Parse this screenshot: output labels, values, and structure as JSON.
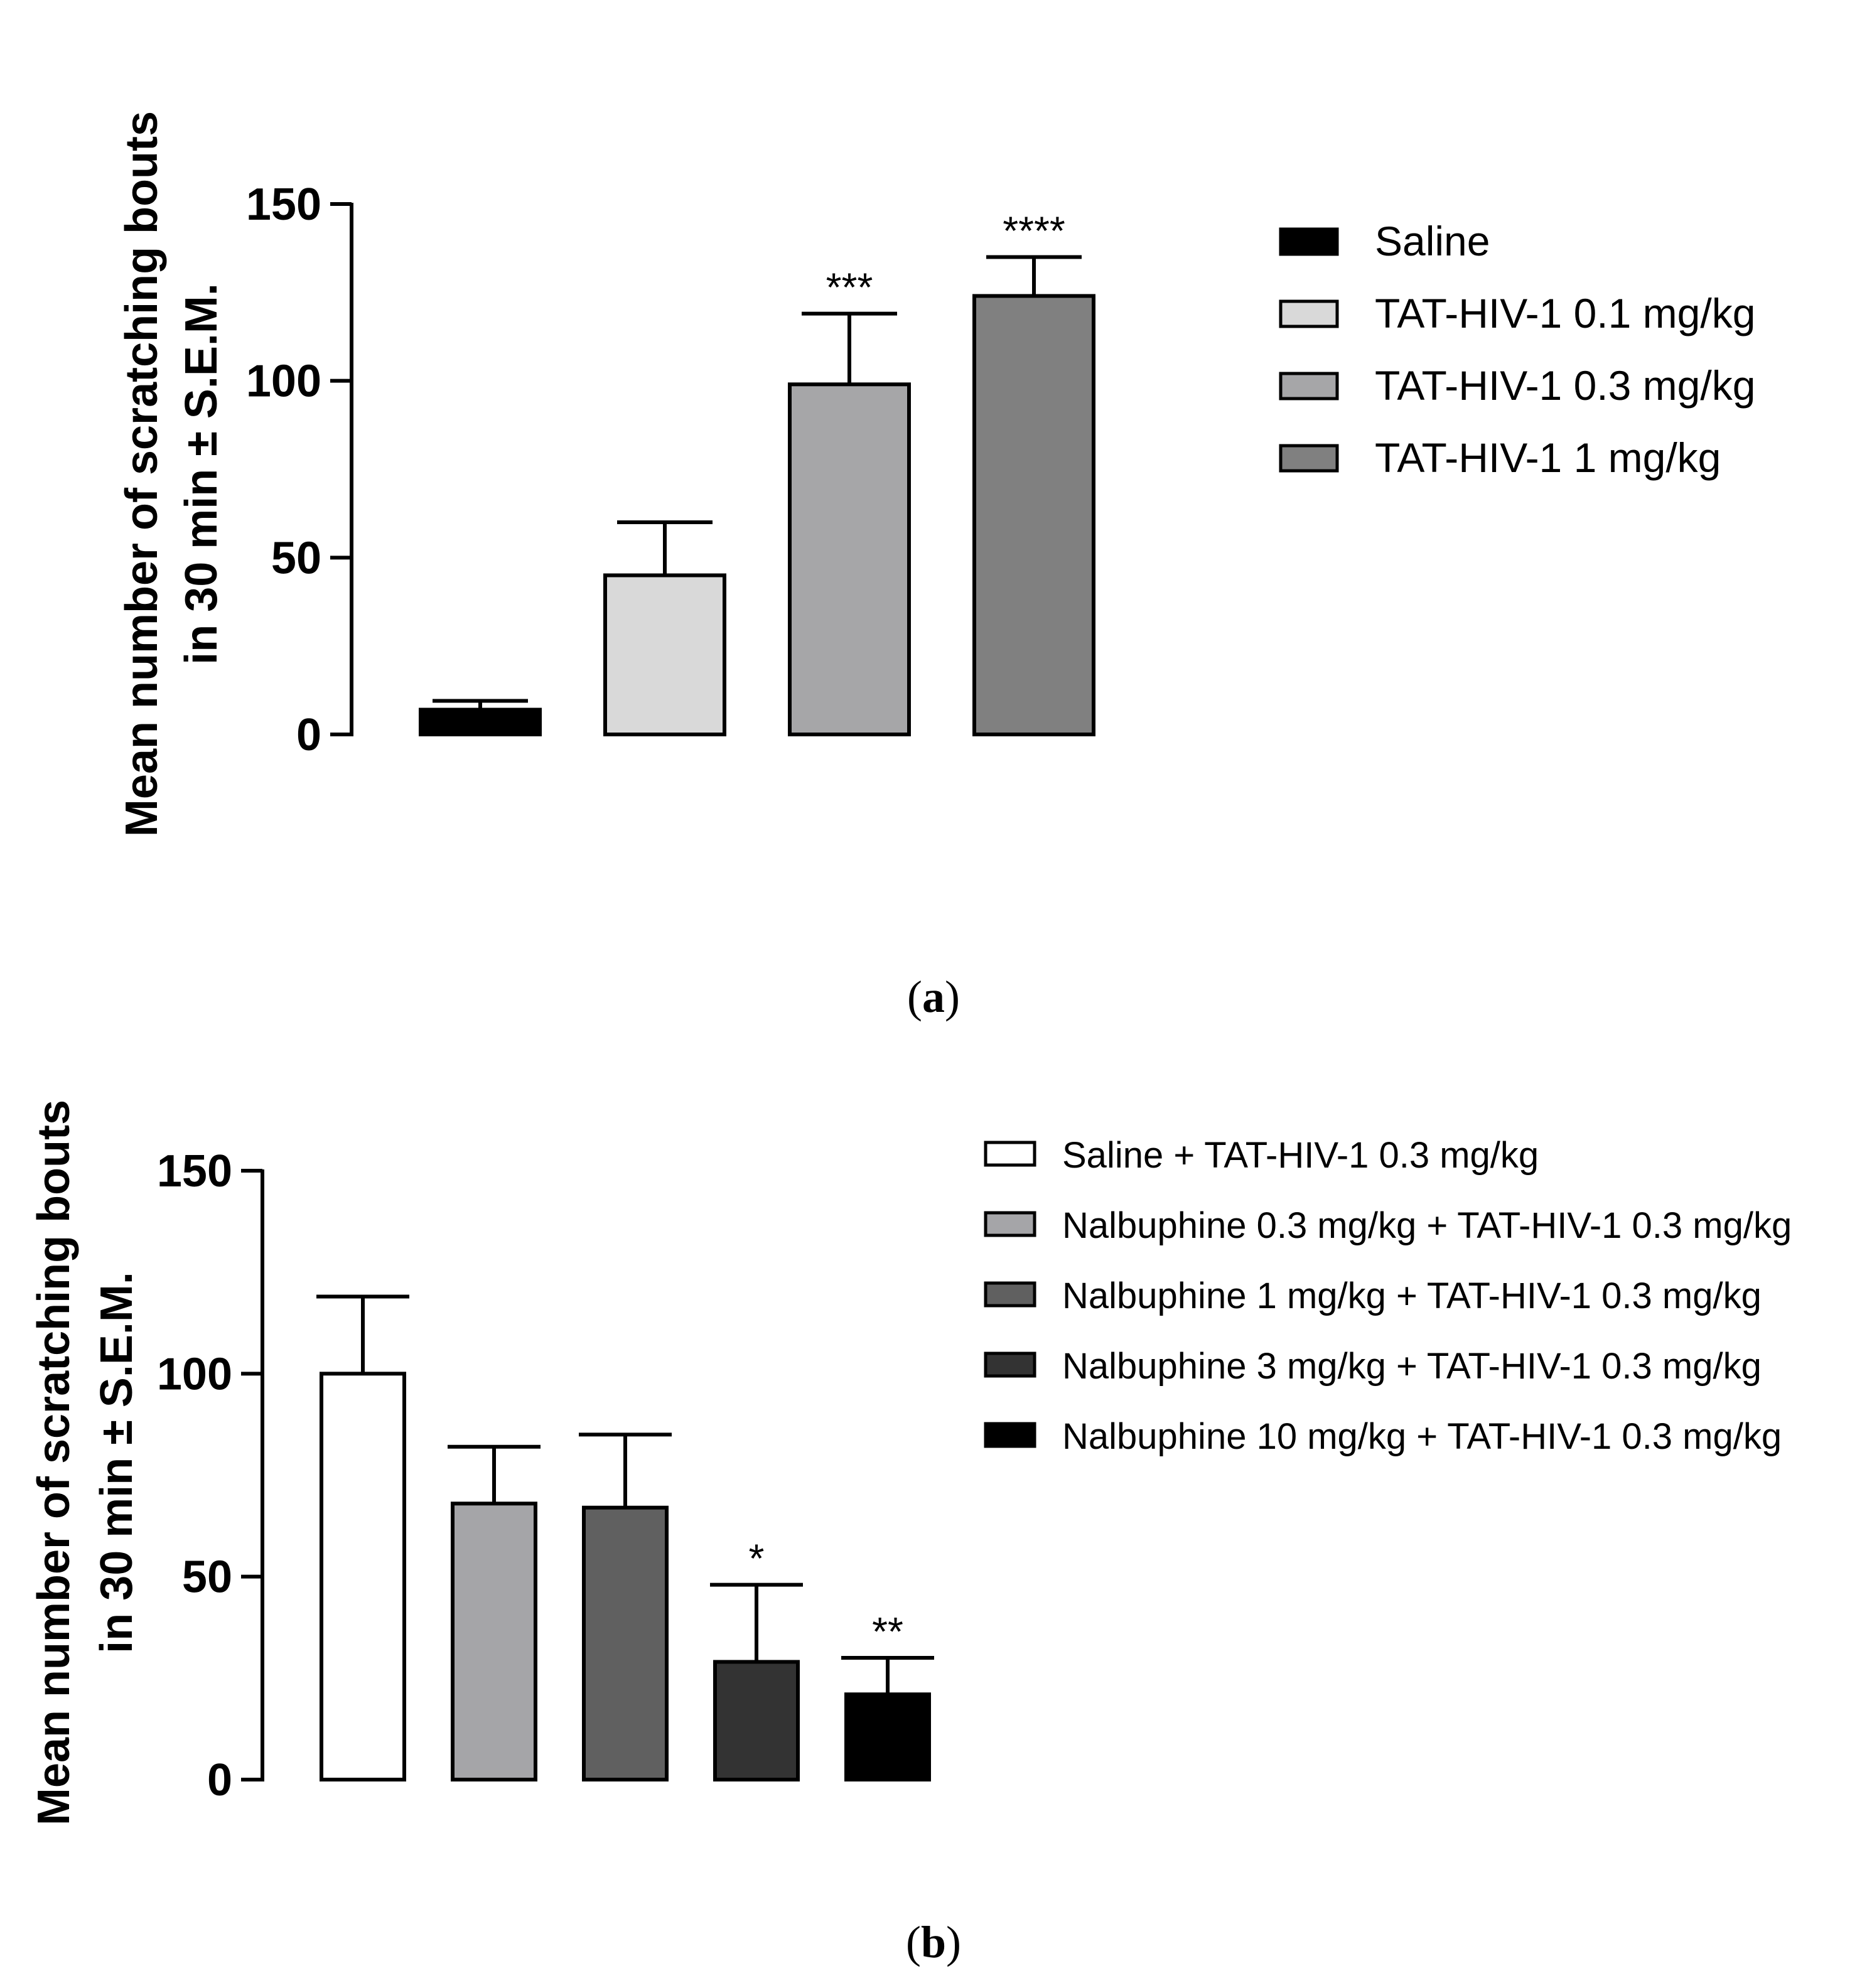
{
  "chart_data": [
    {
      "type": "bar",
      "panel": "a",
      "caption_letter": "a",
      "ylabel": [
        "Mean number of scratching bouts",
        "in 30 min ± S.E.M."
      ],
      "ylim": [
        0,
        150
      ],
      "yticks": [
        0,
        50,
        100,
        150
      ],
      "ytick_labels": [
        "0",
        "50",
        "100",
        "150"
      ],
      "legend_position": "right",
      "series": [
        {
          "name": "Saline",
          "value": 7,
          "error": 2.5,
          "color": "#000000",
          "sig": ""
        },
        {
          "name": "TAT-HIV-1 0.1 mg/kg",
          "value": 45,
          "error": 15,
          "color": "#d9d9d9",
          "sig": ""
        },
        {
          "name": "TAT-HIV-1 0.3 mg/kg",
          "value": 99,
          "error": 20,
          "color": "#a6a6a8",
          "sig": "***"
        },
        {
          "name": "TAT-HIV-1 1 mg/kg",
          "value": 124,
          "error": 11,
          "color": "#808080",
          "sig": "****"
        }
      ]
    },
    {
      "type": "bar",
      "panel": "b",
      "caption_letter": "b",
      "ylabel": [
        "Mean number of scratching bouts",
        "in 30 min ± S.E.M."
      ],
      "ylim": [
        0,
        150
      ],
      "yticks": [
        0,
        50,
        100,
        150
      ],
      "ytick_labels": [
        "0",
        "50",
        "100",
        "150"
      ],
      "legend_position": "right",
      "series": [
        {
          "name": "Saline + TAT-HIV-1 0.3 mg/kg",
          "value": 100,
          "error": 19,
          "color": "#ffffff",
          "sig": ""
        },
        {
          "name": "Nalbuphine 0.3 mg/kg + TAT-HIV-1 0.3 mg/kg",
          "value": 68,
          "error": 14,
          "color": "#a5a5a8",
          "sig": ""
        },
        {
          "name": "Nalbuphine 1 mg/kg + TAT-HIV-1 0.3 mg/kg",
          "value": 67,
          "error": 18,
          "color": "#606060",
          "sig": ""
        },
        {
          "name": "Nalbuphine 3 mg/kg + TAT-HIV-1 0.3 mg/kg",
          "value": 29,
          "error": 19,
          "color": "#333333",
          "sig": "*"
        },
        {
          "name": "Nalbuphine 10 mg/kg + TAT-HIV-1 0.3 mg/kg",
          "value": 21,
          "error": 9,
          "color": "#000000",
          "sig": "**"
        }
      ]
    }
  ]
}
